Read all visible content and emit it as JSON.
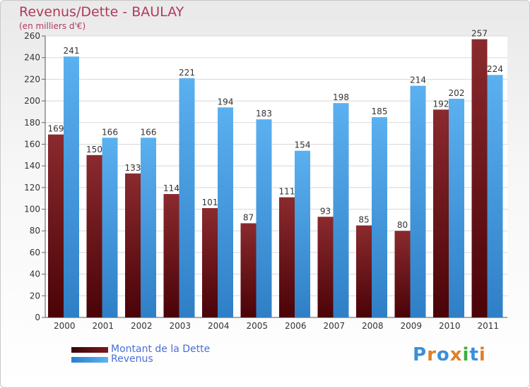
{
  "title": "Revenus/Dette - BAULAY",
  "subtitle": "(en milliers d'€)",
  "legend": [
    {
      "label": "Montant de la Dette",
      "color": "#6b0f14"
    },
    {
      "label": "Revenus",
      "color": "#3f9ee6"
    }
  ],
  "logo": {
    "text": "Proxiti",
    "letters": [
      "P",
      "r",
      "o",
      "x",
      "i",
      "t",
      "i"
    ],
    "colors": [
      "#3c8fd8",
      "#e0802a",
      "#3c8fd8",
      "#e0802a",
      "#3cae3c",
      "#3c8fd8",
      "#e0802a"
    ]
  },
  "chart_data": {
    "type": "bar",
    "categories": [
      "2000",
      "2001",
      "2002",
      "2003",
      "2004",
      "2005",
      "2006",
      "2007",
      "2008",
      "2009",
      "2010",
      "2011"
    ],
    "series": [
      {
        "name": "Montant de la Dette",
        "color": "#6b0f14",
        "values": [
          169,
          150,
          133,
          114,
          101,
          87,
          111,
          93,
          85,
          80,
          192,
          257
        ]
      },
      {
        "name": "Revenus",
        "color": "#3f9ee6",
        "values": [
          241,
          166,
          166,
          221,
          194,
          183,
          154,
          198,
          185,
          214,
          202,
          224
        ]
      }
    ],
    "ylim": [
      0,
      260
    ],
    "yticks": [
      0,
      20,
      40,
      60,
      80,
      100,
      120,
      140,
      160,
      180,
      200,
      220,
      240,
      260
    ],
    "grid": true,
    "legend_position": "bottom-left"
  }
}
